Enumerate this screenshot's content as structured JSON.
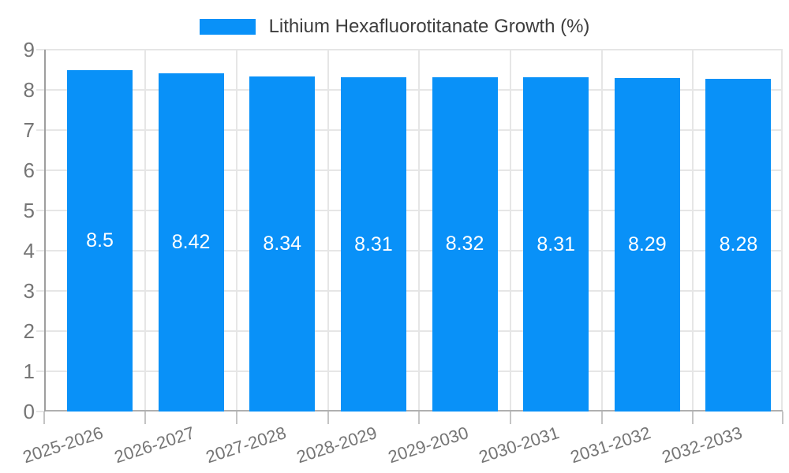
{
  "legend": {
    "label": "Lithium Hexafluorotitanate Growth (%)"
  },
  "colors": {
    "bar": "#0991f8",
    "grid": "#e6e6e6",
    "axis_y": "#9e9e9e",
    "axis_x": "#b0b0b0",
    "tick": "#c4c4c4",
    "tick_label": "#757575",
    "value_label": "#ffffff",
    "legend_text": "#3d3d3d",
    "background": "#ffffff"
  },
  "chart_data": {
    "type": "bar",
    "title": "Lithium Hexafluorotitanate Growth (%)",
    "categories": [
      "2025-2026",
      "2026-2027",
      "2027-2028",
      "2028-2029",
      "2029-2030",
      "2030-2031",
      "2031-2032",
      "2032-2033"
    ],
    "values": [
      8.5,
      8.42,
      8.34,
      8.31,
      8.32,
      8.31,
      8.29,
      8.28
    ],
    "value_labels": [
      "8.5",
      "8.42",
      "8.34",
      "8.31",
      "8.32",
      "8.31",
      "8.29",
      "8.28"
    ],
    "xlabel": "",
    "ylabel": "",
    "ylim": [
      0,
      9
    ],
    "yticks": [
      0,
      1,
      2,
      3,
      4,
      5,
      6,
      7,
      8,
      9
    ],
    "grid": true,
    "legend_position": "top-center",
    "x_label_rotation_deg": -18,
    "value_label_position": "center-inside"
  }
}
